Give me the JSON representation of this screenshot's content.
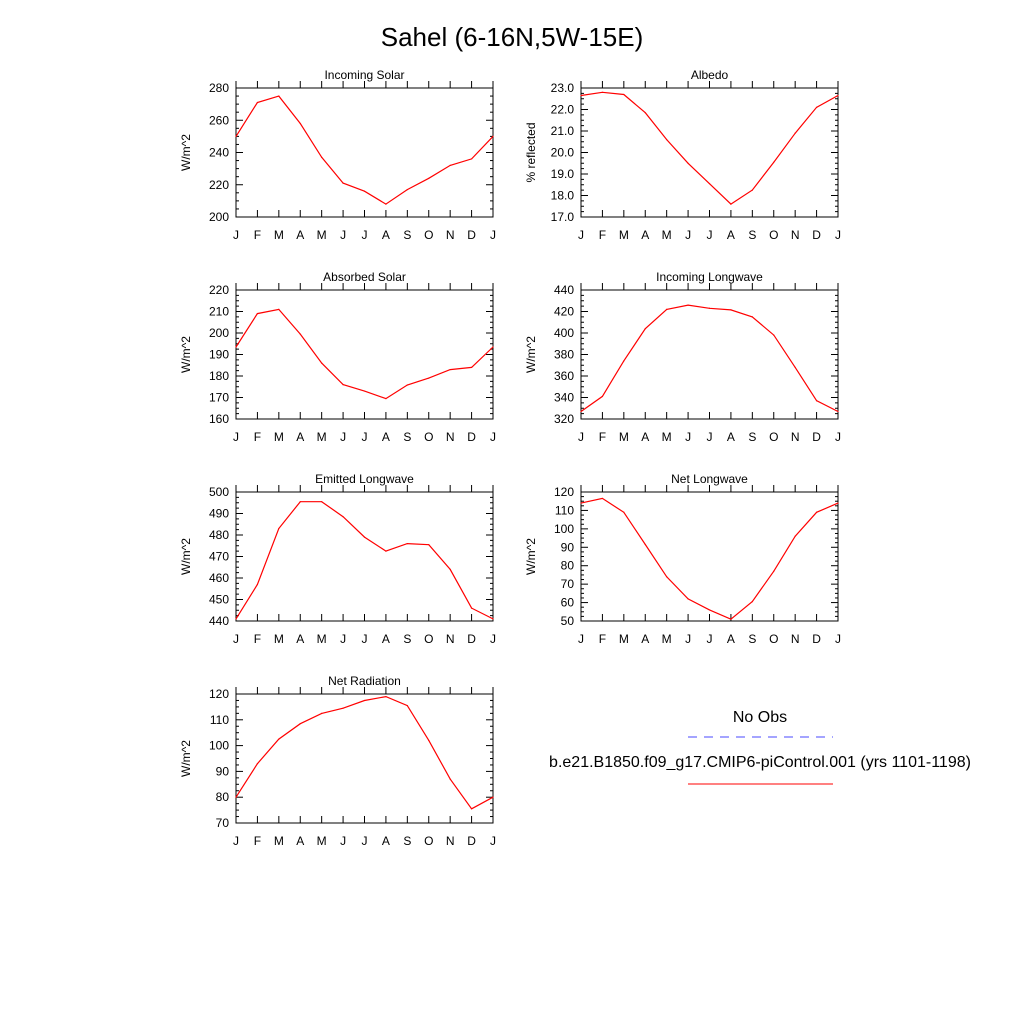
{
  "title": "Sahel (6-16N,5W-15E)",
  "months": [
    "J",
    "F",
    "M",
    "A",
    "M",
    "J",
    "J",
    "A",
    "S",
    "O",
    "N",
    "D",
    "J"
  ],
  "colors": {
    "model_line": "#ff0000",
    "obs_line": "#4a4aff",
    "axis": "#000000",
    "background": "#ffffff"
  },
  "legend": {
    "obs_label": "No Obs",
    "model_label": "b.e21.B1850.f09_g17.CMIP6-piControl.001 (yrs 1101-1198)"
  },
  "chart_data": [
    {
      "type": "line",
      "title": "Incoming Solar",
      "xlabel": "",
      "ylabel": "W/m^2",
      "categories": [
        "J",
        "F",
        "M",
        "A",
        "M",
        "J",
        "J",
        "A",
        "S",
        "O",
        "N",
        "D",
        "J"
      ],
      "ylim": [
        200,
        280
      ],
      "yticks": [
        "200",
        "220",
        "240",
        "260",
        "280"
      ],
      "series": [
        {
          "name": "b.e21.B1850.f09_g17.CMIP6-piControl.001 (yrs 1101-1198)",
          "values": [
            250,
            271,
            275,
            258,
            237,
            221,
            216,
            208,
            217,
            224,
            232,
            236,
            250
          ]
        }
      ]
    },
    {
      "type": "line",
      "title": "Albedo",
      "xlabel": "",
      "ylabel": "% reflected",
      "categories": [
        "J",
        "F",
        "M",
        "A",
        "M",
        "J",
        "J",
        "A",
        "S",
        "O",
        "N",
        "D",
        "J"
      ],
      "ylim": [
        17.0,
        23.0
      ],
      "yticks": [
        "17.0",
        "18.0",
        "19.0",
        "20.0",
        "21.0",
        "22.0",
        "23.0"
      ],
      "series": [
        {
          "name": "b.e21.B1850.f09_g17.CMIP6-piControl.001 (yrs 1101-1198)",
          "values": [
            22.65,
            22.8,
            22.7,
            21.85,
            20.6,
            19.5,
            18.55,
            17.6,
            18.25,
            19.55,
            20.9,
            22.1,
            22.65
          ]
        }
      ]
    },
    {
      "type": "line",
      "title": "Absorbed Solar",
      "xlabel": "",
      "ylabel": "W/m^2",
      "categories": [
        "J",
        "F",
        "M",
        "A",
        "M",
        "J",
        "J",
        "A",
        "S",
        "O",
        "N",
        "D",
        "J"
      ],
      "ylim": [
        160,
        220
      ],
      "yticks": [
        "160",
        "170",
        "180",
        "190",
        "200",
        "210",
        "220"
      ],
      "series": [
        {
          "name": "b.e21.B1850.f09_g17.CMIP6-piControl.001 (yrs 1101-1198)",
          "values": [
            193.5,
            209,
            211,
            199.5,
            186,
            176,
            173,
            169.5,
            175.8,
            179,
            183,
            184,
            193.5
          ]
        }
      ]
    },
    {
      "type": "line",
      "title": "Incoming Longwave",
      "xlabel": "",
      "ylabel": "W/m^2",
      "categories": [
        "J",
        "F",
        "M",
        "A",
        "M",
        "J",
        "J",
        "A",
        "S",
        "O",
        "N",
        "D",
        "J"
      ],
      "ylim": [
        320,
        440
      ],
      "yticks": [
        "320",
        "340",
        "360",
        "380",
        "400",
        "420",
        "440"
      ],
      "series": [
        {
          "name": "b.e21.B1850.f09_g17.CMIP6-piControl.001 (yrs 1101-1198)",
          "values": [
            327,
            341,
            374,
            404,
            422,
            426,
            423,
            421.5,
            415,
            398,
            368,
            337,
            327
          ]
        }
      ]
    },
    {
      "type": "line",
      "title": "Emitted Longwave",
      "xlabel": "",
      "ylabel": "W/m^2",
      "categories": [
        "J",
        "F",
        "M",
        "A",
        "M",
        "J",
        "J",
        "A",
        "S",
        "O",
        "N",
        "D",
        "J"
      ],
      "ylim": [
        440,
        500
      ],
      "yticks": [
        "440",
        "450",
        "460",
        "470",
        "480",
        "490",
        "500"
      ],
      "series": [
        {
          "name": "b.e21.B1850.f09_g17.CMIP6-piControl.001 (yrs 1101-1198)",
          "values": [
            441,
            457,
            483,
            495.5,
            495.5,
            488.5,
            479,
            472.5,
            476,
            475.5,
            464,
            446,
            441
          ]
        }
      ]
    },
    {
      "type": "line",
      "title": "Net Longwave",
      "xlabel": "",
      "ylabel": "W/m^2",
      "categories": [
        "J",
        "F",
        "M",
        "A",
        "M",
        "J",
        "J",
        "A",
        "S",
        "O",
        "N",
        "D",
        "J"
      ],
      "ylim": [
        50,
        120
      ],
      "yticks": [
        "50",
        "60",
        "70",
        "80",
        "90",
        "100",
        "110",
        "120"
      ],
      "series": [
        {
          "name": "b.e21.B1850.f09_g17.CMIP6-piControl.001 (yrs 1101-1198)",
          "values": [
            114,
            116.5,
            109,
            91.5,
            74,
            62,
            56,
            51,
            60.5,
            77,
            96,
            109,
            114
          ]
        }
      ]
    },
    {
      "type": "line",
      "title": "Net Radiation",
      "xlabel": "",
      "ylabel": "W/m^2",
      "categories": [
        "J",
        "F",
        "M",
        "A",
        "M",
        "J",
        "J",
        "A",
        "S",
        "O",
        "N",
        "D",
        "J"
      ],
      "ylim": [
        70,
        120
      ],
      "yticks": [
        "70",
        "80",
        "90",
        "100",
        "110",
        "120"
      ],
      "series": [
        {
          "name": "b.e21.B1850.f09_g17.CMIP6-piControl.001 (yrs 1101-1198)",
          "values": [
            80,
            93,
            102.5,
            108.5,
            112.5,
            114.5,
            117.5,
            119,
            115.5,
            102,
            87,
            75.5,
            80
          ]
        }
      ]
    }
  ]
}
